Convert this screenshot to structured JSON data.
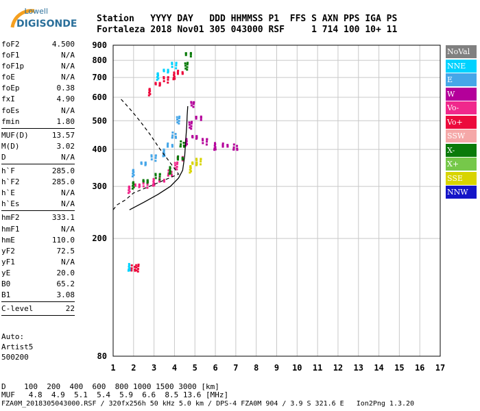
{
  "logo": {
    "brand": "Lowell",
    "product": "DIGISONDE"
  },
  "header": {
    "line1": "Station   YYYY DAY   DDD HHMMSS P1  FFS S AXN PPS IGA PS",
    "line2": "Fortaleza 2018 Nov01 305 043000 RSF     1 714 100 10+ 11"
  },
  "params": {
    "group1": [
      {
        "label": "foF2",
        "value": "4.500"
      },
      {
        "label": "foF1",
        "value": "N/A"
      },
      {
        "label": "foF1p",
        "value": "N/A"
      },
      {
        "label": "foE",
        "value": "N/A"
      },
      {
        "label": "foEp",
        "value": "0.38"
      },
      {
        "label": "fxI",
        "value": "4.90"
      },
      {
        "label": "foEs",
        "value": "N/A"
      },
      {
        "label": "fmin",
        "value": "1.80"
      }
    ],
    "group2": [
      {
        "label": "MUF(D)",
        "value": "13.57"
      },
      {
        "label": "M(D)",
        "value": "3.02"
      },
      {
        "label": "D",
        "value": "N/A"
      }
    ],
    "group3": [
      {
        "label": "h`F",
        "value": "285.0"
      },
      {
        "label": "h`F2",
        "value": "285.0"
      },
      {
        "label": "h`E",
        "value": "N/A"
      },
      {
        "label": "h`Es",
        "value": "N/A"
      }
    ],
    "group4": [
      {
        "label": "hmF2",
        "value": "333.1"
      },
      {
        "label": "hmF1",
        "value": "N/A"
      },
      {
        "label": "hmE",
        "value": "110.0"
      },
      {
        "label": "yF2",
        "value": "72.5"
      },
      {
        "label": "yF1",
        "value": "N/A"
      },
      {
        "label": "yE",
        "value": "20.0"
      },
      {
        "label": "B0",
        "value": "65.2"
      },
      {
        "label": "B1",
        "value": "3.08"
      }
    ],
    "group5": [
      {
        "label": "C-level",
        "value": "22"
      }
    ]
  },
  "auto": {
    "line1": "Auto:",
    "line2": "Artist5",
    "line3": "500200"
  },
  "bottom": {
    "d_line": "D    100  200  400  600  800 1000 1500 3000 [km]",
    "muf_line": "MUF   4.8  4.9  5.1  5.4  5.9  6.6  8.5 13.6 [MHz]"
  },
  "footer": "FZA0M_2018305043000.RSF / 320fx256h 50 kHz 5.0 km / DPS-4 FZA0M 904 / 3.9 S 321.6 E   Ion2Png 1.3.20",
  "legend": [
    {
      "label": "NoVal",
      "color": "#808080"
    },
    {
      "label": "NNE",
      "color": "#00d2ff"
    },
    {
      "label": "E",
      "color": "#46a6e8"
    },
    {
      "label": "W",
      "color": "#b4009a"
    },
    {
      "label": "Vo-",
      "color": "#f0288c"
    },
    {
      "label": "Vo+",
      "color": "#ec0a3c"
    },
    {
      "label": "SSW",
      "color": "#f5a8a8"
    },
    {
      "label": "X-",
      "color": "#0a7a0a"
    },
    {
      "label": "X+",
      "color": "#76c84a"
    },
    {
      "label": "SSE",
      "color": "#d8d400"
    },
    {
      "label": "NNW",
      "color": "#1414c8"
    }
  ],
  "chart_data": {
    "type": "scatter",
    "title": "",
    "xlabel": "",
    "ylabel": "",
    "xlim": [
      1,
      17
    ],
    "ylim": [
      80,
      900
    ],
    "y_scale": "log",
    "x_ticks": [
      1,
      2,
      3,
      4,
      5,
      6,
      7,
      8,
      9,
      10,
      11,
      12,
      13,
      14,
      15,
      16,
      17
    ],
    "y_ticks": [
      80,
      200,
      300,
      400,
      500,
      600,
      700,
      800,
      900
    ],
    "grid": true,
    "traces": [
      {
        "name": "Vo-",
        "color": "#f0288c",
        "points": [
          [
            1.8,
            290
          ],
          [
            2.2,
            295
          ],
          [
            2.6,
            300
          ],
          [
            3.0,
            310
          ],
          [
            3.4,
            320
          ],
          [
            3.8,
            335
          ],
          [
            4.1,
            350
          ],
          [
            4.3,
            365
          ]
        ]
      },
      {
        "name": "E",
        "color": "#46a6e8",
        "points": [
          [
            2.0,
            330
          ],
          [
            2.5,
            350
          ],
          [
            3.0,
            370
          ],
          [
            3.5,
            390
          ],
          [
            3.8,
            420
          ],
          [
            4.0,
            450
          ],
          [
            4.2,
            500
          ]
        ]
      },
      {
        "name": "W",
        "color": "#b4009a",
        "points": [
          [
            4.6,
            420
          ],
          [
            5.0,
            430
          ],
          [
            5.5,
            420
          ],
          [
            6.0,
            410
          ],
          [
            6.5,
            420
          ],
          [
            7.0,
            410
          ],
          [
            4.8,
            480
          ],
          [
            5.2,
            500
          ],
          [
            4.9,
            560
          ]
        ]
      },
      {
        "name": "X-",
        "color": "#0a7a0a",
        "points": [
          [
            2.0,
            300
          ],
          [
            2.6,
            305
          ],
          [
            3.2,
            320
          ],
          [
            3.8,
            340
          ],
          [
            4.3,
            380
          ],
          [
            4.4,
            420
          ],
          [
            4.6,
            760
          ],
          [
            4.7,
            820
          ]
        ]
      },
      {
        "name": "SSE",
        "color": "#d8d400",
        "points": [
          [
            4.8,
            340
          ],
          [
            5.0,
            350
          ],
          [
            5.2,
            360
          ]
        ]
      },
      {
        "name": "Vo+",
        "color": "#ec0a3c",
        "points": [
          [
            2.8,
            620
          ],
          [
            3.2,
            650
          ],
          [
            3.6,
            680
          ],
          [
            4.0,
            710
          ],
          [
            4.3,
            740
          ],
          [
            2.0,
            160
          ],
          [
            2.2,
            158
          ]
        ]
      },
      {
        "name": "NNE",
        "color": "#00d2ff",
        "points": [
          [
            3.2,
            700
          ],
          [
            3.6,
            720
          ],
          [
            4.0,
            760
          ],
          [
            1.8,
            160
          ]
        ]
      }
    ],
    "profile_solid": [
      [
        1.8,
        250
      ],
      [
        2.5,
        265
      ],
      [
        3.2,
        282
      ],
      [
        3.8,
        300
      ],
      [
        4.2,
        320
      ],
      [
        4.4,
        340
      ],
      [
        4.5,
        380
      ],
      [
        4.55,
        430
      ],
      [
        4.6,
        480
      ],
      [
        4.62,
        520
      ],
      [
        4.65,
        560
      ]
    ],
    "profile_dashed": [
      [
        1.0,
        250
      ],
      [
        1.2,
        260
      ],
      [
        1.6,
        270
      ],
      [
        2.0,
        285
      ],
      [
        4.2,
        330
      ],
      [
        3.8,
        360
      ],
      [
        3.3,
        400
      ],
      [
        2.8,
        450
      ],
      [
        2.3,
        500
      ],
      [
        1.9,
        540
      ],
      [
        1.6,
        570
      ],
      [
        1.3,
        600
      ]
    ]
  }
}
